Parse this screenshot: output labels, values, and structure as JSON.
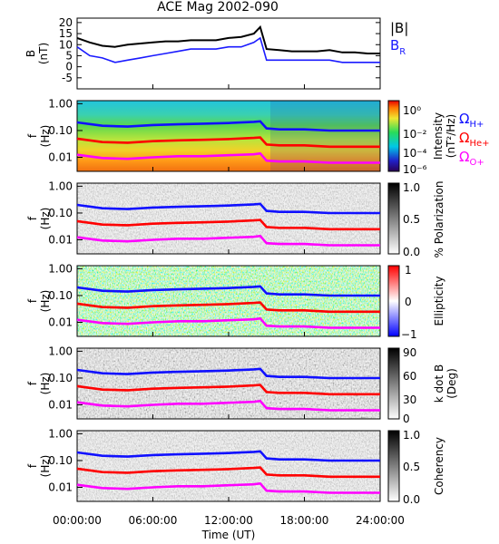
{
  "page": {
    "title": "ACE Mag 2002-090",
    "xlabel": "Time (UT)",
    "x_tick_labels": [
      "00:00:00",
      "06:00:00",
      "12:00:00",
      "18:00:00",
      "24:00:00"
    ]
  },
  "legend": {
    "bmag": "|B|",
    "br_main": "B",
    "br_sub": "R",
    "omega_symbol": "Ω",
    "h_sub": "H+",
    "he_sub": "He+",
    "o_sub": "O+"
  },
  "colors": {
    "bmag": "#000000",
    "br": "#1a1aff",
    "h_line": "#1010ff",
    "he_line": "#ff0000",
    "o_line": "#ff00ff"
  },
  "chart_data": [
    {
      "type": "line",
      "panel": "field",
      "ylabel": "B",
      "yunit": "(nT)",
      "x_unit": "hours UT",
      "xlim": [
        0,
        24
      ],
      "ylim": [
        -10,
        22
      ],
      "y_ticks": [
        -5,
        0,
        5,
        10,
        15,
        20
      ],
      "x": [
        0,
        1,
        2,
        3,
        4,
        5,
        6,
        7,
        8,
        9,
        10,
        11,
        12,
        13,
        14,
        14.5,
        15,
        16,
        17,
        18,
        19,
        20,
        21,
        22,
        23,
        24
      ],
      "series": [
        {
          "name": "|B|",
          "values": [
            13,
            11,
            9.5,
            9,
            10,
            10.5,
            11,
            11.5,
            11.5,
            12,
            12,
            12,
            13,
            13.5,
            15,
            18,
            8,
            7.5,
            7,
            7,
            7,
            7.5,
            6.5,
            6.5,
            6,
            6
          ]
        },
        {
          "name": "BR",
          "values": [
            9,
            5,
            4,
            2,
            3,
            4,
            5,
            6,
            7,
            8,
            8,
            8,
            9,
            9,
            11,
            13,
            3,
            3,
            3,
            3,
            3,
            3,
            2,
            2,
            2,
            2
          ]
        }
      ]
    },
    {
      "type": "heatmap",
      "panel": "spectrogram",
      "ylabel": "f",
      "yunit": "(Hz)",
      "yscale": "log",
      "ylim": [
        0.003,
        1.3
      ],
      "y_tick_labels": [
        "1.00",
        "0.10",
        "0.01"
      ],
      "colorbar": {
        "label": "Intensity",
        "unit": "(nT²/Hz)",
        "scale": "log",
        "ticks": [
          "10⁰",
          "10⁻²",
          "10⁻⁴",
          "10⁻⁶"
        ]
      }
    },
    {
      "type": "heatmap",
      "panel": "polarization",
      "ylabel": "f",
      "yunit": "(Hz)",
      "yscale": "log",
      "y_tick_labels": [
        "1.00",
        "0.10",
        "0.01"
      ],
      "colorbar": {
        "label": "% Polarization",
        "ticks": [
          "1.0",
          "0.5",
          "0.0"
        ]
      }
    },
    {
      "type": "heatmap",
      "panel": "ellipticity",
      "ylabel": "f",
      "yunit": "(Hz)",
      "yscale": "log",
      "y_tick_labels": [
        "1.00",
        "0.10",
        "0.01"
      ],
      "colorbar": {
        "label": "Ellipticity",
        "ticks": [
          "1",
          "0",
          "−1"
        ]
      }
    },
    {
      "type": "heatmap",
      "panel": "kdotb",
      "ylabel": "f",
      "yunit": "(Hz)",
      "yscale": "log",
      "y_tick_labels": [
        "1.00",
        "0.10",
        "0.01"
      ],
      "colorbar": {
        "label": "k dot B",
        "unit": "(Deg)",
        "ticks": [
          "90",
          "60",
          "30",
          "0"
        ]
      }
    },
    {
      "type": "heatmap",
      "panel": "coherency",
      "ylabel": "f",
      "yunit": "(Hz)",
      "yscale": "log",
      "y_tick_labels": [
        "1.00",
        "0.10",
        "0.01"
      ],
      "colorbar": {
        "label": "Coherency",
        "ticks": [
          "1.0",
          "0.5",
          "0.0"
        ]
      }
    }
  ],
  "gyrofrequencies": {
    "x": [
      0,
      2,
      4,
      6,
      8,
      10,
      12,
      14,
      14.5,
      15,
      16,
      18,
      20,
      22,
      24
    ],
    "h_plus_hz": [
      0.2,
      0.15,
      0.14,
      0.16,
      0.17,
      0.18,
      0.19,
      0.21,
      0.22,
      0.12,
      0.11,
      0.11,
      0.1,
      0.1,
      0.1
    ],
    "he_plus_hz": [
      0.05,
      0.037,
      0.035,
      0.04,
      0.043,
      0.045,
      0.048,
      0.053,
      0.055,
      0.03,
      0.028,
      0.028,
      0.025,
      0.025,
      0.025
    ],
    "o_plus_hz": [
      0.0125,
      0.0094,
      0.0088,
      0.01,
      0.011,
      0.011,
      0.012,
      0.013,
      0.014,
      0.0075,
      0.007,
      0.007,
      0.0063,
      0.0063,
      0.0063
    ]
  }
}
